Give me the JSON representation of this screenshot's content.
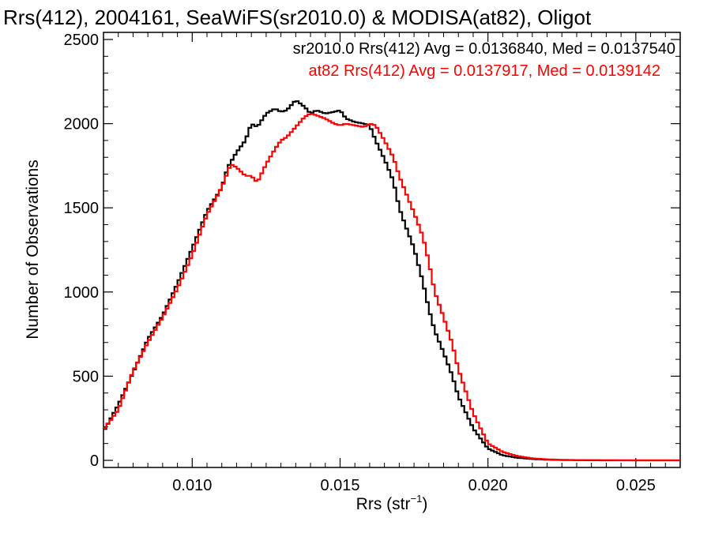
{
  "chart_data": {
    "type": "line",
    "title": "Rrs(412), 2004161, SeaWiFS(sr2010.0) & MODISA(at82), Oligot",
    "xlabel_main": "Rrs (str",
    "xlabel_exp": "−1",
    "xlabel_close": ")",
    "ylabel": "Number of Observations",
    "xlim": [
      0.007,
      0.0265
    ],
    "ylim": [
      0,
      2500
    ],
    "grid": false,
    "legend_placement": "top-right",
    "x_ticks": [
      "0.010",
      "0.015",
      "0.020",
      "0.025"
    ],
    "y_ticks": [
      "0",
      "500",
      "1000",
      "1500",
      "2000",
      "2500"
    ],
    "series": [
      {
        "name": "sr2010.0 Rrs(412) Avg = 0.0136840, Med = 0.0137540",
        "color": "#000000",
        "x": [
          0.007,
          0.0075,
          0.008,
          0.0085,
          0.009,
          0.0095,
          0.01,
          0.0105,
          0.011,
          0.0112,
          0.0115,
          0.0118,
          0.012,
          0.0122,
          0.0125,
          0.0128,
          0.013,
          0.0132,
          0.0135,
          0.0138,
          0.014,
          0.0142,
          0.0145,
          0.0148,
          0.015,
          0.0152,
          0.0155,
          0.0158,
          0.016,
          0.0162,
          0.0165,
          0.0168,
          0.017,
          0.0172,
          0.0175,
          0.0178,
          0.018,
          0.0182,
          0.0185,
          0.0188,
          0.019,
          0.0195,
          0.02,
          0.0205,
          0.021,
          0.0215,
          0.022,
          0.0225,
          0.023,
          0.024,
          0.025,
          0.0265
        ],
        "y": [
          170,
          330,
          520,
          720,
          860,
          1050,
          1260,
          1480,
          1620,
          1740,
          1830,
          1900,
          2000,
          1980,
          2060,
          2090,
          2070,
          2080,
          2140,
          2100,
          2060,
          2080,
          2060,
          2070,
          2080,
          2030,
          2010,
          2000,
          1990,
          1900,
          1790,
          1660,
          1500,
          1400,
          1260,
          1060,
          900,
          770,
          640,
          500,
          380,
          190,
          70,
          30,
          15,
          8,
          4,
          2,
          1,
          0,
          0,
          0
        ]
      },
      {
        "name": "at82 Rrs(412) Avg = 0.0137917, Med = 0.0139142",
        "color": "#ff0000",
        "x": [
          0.007,
          0.0075,
          0.008,
          0.0085,
          0.009,
          0.0095,
          0.01,
          0.0105,
          0.011,
          0.0113,
          0.0115,
          0.0118,
          0.012,
          0.0122,
          0.0125,
          0.0128,
          0.013,
          0.0132,
          0.0135,
          0.0138,
          0.014,
          0.0142,
          0.0145,
          0.0148,
          0.015,
          0.0152,
          0.0155,
          0.0158,
          0.016,
          0.0162,
          0.0165,
          0.0168,
          0.017,
          0.0172,
          0.0175,
          0.0178,
          0.018,
          0.0182,
          0.0185,
          0.0188,
          0.019,
          0.0195,
          0.02,
          0.0205,
          0.021,
          0.0215,
          0.022,
          0.0225,
          0.023,
          0.024,
          0.025,
          0.0265
        ],
        "y": [
          180,
          300,
          530,
          700,
          850,
          1020,
          1220,
          1460,
          1620,
          1760,
          1740,
          1690,
          1690,
          1650,
          1760,
          1850,
          1900,
          1920,
          1980,
          2040,
          2060,
          2050,
          2030,
          2000,
          1990,
          2000,
          1990,
          1980,
          2000,
          1990,
          1900,
          1800,
          1690,
          1600,
          1470,
          1330,
          1180,
          1000,
          850,
          690,
          540,
          280,
          100,
          50,
          25,
          12,
          6,
          3,
          2,
          1,
          0,
          0
        ]
      }
    ]
  }
}
